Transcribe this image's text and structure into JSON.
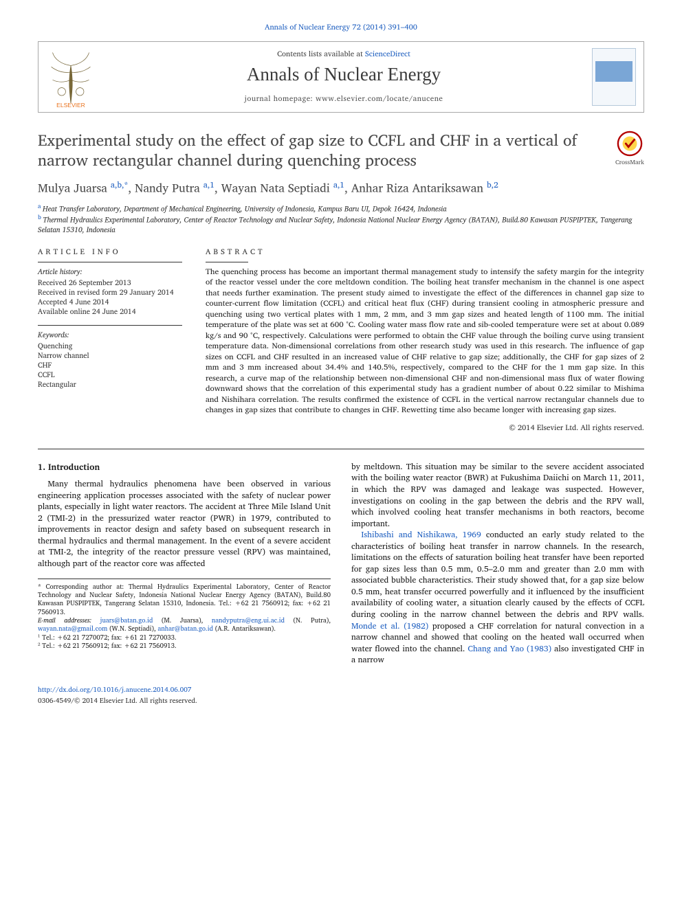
{
  "citation_top": "Annals of Nuclear Energy 72 (2014) 391–400",
  "header": {
    "contents_prefix": "Contents lists available at ",
    "contents_link": "ScienceDirect",
    "journal_name": "Annals of Nuclear Energy",
    "homepage_label": "journal homepage: www.elsevier.com/locate/anucene",
    "publisher_logo_alt": "Elsevier"
  },
  "crossmark_label": "CrossMark",
  "title": "Experimental study on the effect of gap size to CCFL and CHF in a vertical of narrow rectangular channel during quenching process",
  "authors_line": {
    "parts": [
      {
        "name": "Mulya Juarsa ",
        "sup": "a,b,",
        "star": "*"
      },
      {
        "sep": ", "
      },
      {
        "name": "Nandy Putra ",
        "sup": "a,1"
      },
      {
        "sep": ", "
      },
      {
        "name": "Wayan Nata Septiadi ",
        "sup": "a,1"
      },
      {
        "sep": ", "
      },
      {
        "name": "Anhar Riza Antariksawan ",
        "sup": "b,2"
      }
    ]
  },
  "affiliations": [
    {
      "key": "a",
      "text": "Heat Transfer Laboratory, Department of Mechanical Engineering, University of Indonesia, Kampus Baru UI, Depok 16424, Indonesia"
    },
    {
      "key": "b",
      "text": "Thermal Hydraulics Experimental Laboratory, Center of Reactor Technology and Nuclear Safety, Indonesia National Nuclear Energy Agency (BATAN), Build.80 Kawasan PUSPIPTEK, Tangerang Selatan 15310, Indonesia"
    }
  ],
  "article_info": {
    "head": "ARTICLE INFO",
    "history_head": "Article history:",
    "history": [
      "Received 26 September 2013",
      "Received in revised form 29 January 2014",
      "Accepted 4 June 2014",
      "Available online 24 June 2014"
    ],
    "keywords_head": "Keywords:",
    "keywords": [
      "Quenching",
      "Narrow channel",
      "CHF",
      "CCFL",
      "Rectangular"
    ]
  },
  "abstract": {
    "head": "ABSTRACT",
    "text": "The quenching process has become an important thermal management study to intensify the safety margin for the integrity of the reactor vessel under the core meltdown condition. The boiling heat transfer mechanism in the channel is one aspect that needs further examination. The present study aimed to investigate the effect of the differences in channel gap size to counter-current flow limitation (CCFL) and critical heat flux (CHF) during transient cooling in atmospheric pressure and quenching using two vertical plates with 1 mm, 2 mm, and 3 mm gap sizes and heated length of 1100 mm. The initial temperature of the plate was set at 600 °C. Cooling water mass flow rate and sib-cooled temperature were set at about 0.089 kg/s and 90 °C, respectively. Calculations were performed to obtain the CHF value through the boiling curve using transient temperature data. Non-dimensional correlations from other research study was used in this research. The influence of gap sizes on CCFL and CHF resulted in an increased value of CHF relative to gap size; additionally, the CHF for gap sizes of 2 mm and 3 mm increased about 34.4% and 140.5%, respectively, compared to the CHF for the 1 mm gap size. In this research, a curve map of the relationship between non-dimensional CHF and non-dimensional mass flux of water flowing downward shows that the correlation of this experimental study has a gradient number of about 0.22 similar to Mishima and Nishihara correlation. The results confirmed the existence of CCFL in the vertical narrow rectangular channels due to changes in gap sizes that contribute to changes in CHF. Rewetting time also became longer with increasing gap sizes.",
    "copyright": "© 2014 Elsevier Ltd. All rights reserved."
  },
  "section1": {
    "head": "1. Introduction",
    "p1": "Many thermal hydraulics phenomena have been observed in various engineering application processes associated with the safety of nuclear power plants, especially in light water reactors. The accident at Three Mile Island Unit 2 (TMI-2) in the pressurized water reactor (PWR) in 1979, contributed to improvements in reactor design and safety based on subsequent research in thermal hydraulics and thermal management. In the event of a severe accident at TMI-2, the integrity of the reactor pressure vessel (RPV) was maintained, although part of the reactor core was affected",
    "p2a": "by meltdown. This situation may be similar to the severe accident associated with the boiling water reactor (BWR) at Fukushima Daiichi on March 11, 2011, in which the RPV was damaged and leakage was suspected. However, investigations on cooling in the gap between the debris and the RPV wall, which involved cooling heat transfer mechanisms in both reactors, become important.",
    "ref1": "Ishibashi and Nishikawa, 1969",
    "p2b": " conducted an early study related to the characteristics of boiling heat transfer in narrow channels. In the research, limitations on the effects of saturation boiling heat transfer have been reported for gap sizes less than 0.5 mm, 0.5–2.0 mm and greater than 2.0 mm with associated bubble characteristics. Their study showed that, for a gap size below 0.5 mm, heat transfer occurred powerfully and it influenced by the insufficient availability of cooling water, a situation clearly caused by the effects of CCFL during cooling in the narrow channel between the debris and RPV walls. ",
    "ref2": "Monde et al. (1982)",
    "p2c": " proposed a CHF correlation for natural convection in a narrow channel and showed that cooling on the heated wall occurred when water flowed into the channel. ",
    "ref3": "Chang and Yao (1983)",
    "p2d": " also investigated CHF in a narrow"
  },
  "footnotes": {
    "corr": "* Corresponding author at: Thermal Hydraulics Experimental Laboratory, Center of Reactor Technology and Nuclear Safety, Indonesia National Nuclear Energy Agency (BATAN), Build.80 Kawasan PUSPIPTEK, Tangerang Selatan 15310, Indonesia. Tel.: +62 21 7560912; fax: +62 21 7560913.",
    "emails_label": "E-mail addresses: ",
    "emails": [
      {
        "addr": "juars@batan.go.id",
        "who": " (M. Juarsa), "
      },
      {
        "addr": "nandyputra@eng.ui.ac.id",
        "who": " (N. Putra), "
      },
      {
        "addr": "wayan.nata@gmail.com",
        "who": " (W.N. Septiadi), "
      },
      {
        "addr": "anhar@batan.go.id",
        "who": " (A.R. Antariksawan)."
      }
    ],
    "n1": "¹ Tel.: +62 21 7270072; fax: +61 21 7270033.",
    "n2": "² Tel.: +62 21 7560912; fax: +62 21 7560913."
  },
  "bottom": {
    "doi": "http://dx.doi.org/10.1016/j.anucene.2014.06.007",
    "issn_line": "0306-4549/© 2014 Elsevier Ltd. All rights reserved."
  },
  "colors": {
    "link": "#2060c0",
    "text": "#1a1a1a",
    "rule": "#333333",
    "header_border": "#a8a8a8",
    "background": "#ffffff"
  },
  "typography": {
    "body_font": "Georgia, serif",
    "title_size_pt": 17,
    "journal_size_pt": 20,
    "abstract_size_pt": 8.5,
    "body_size_pt": 9
  }
}
